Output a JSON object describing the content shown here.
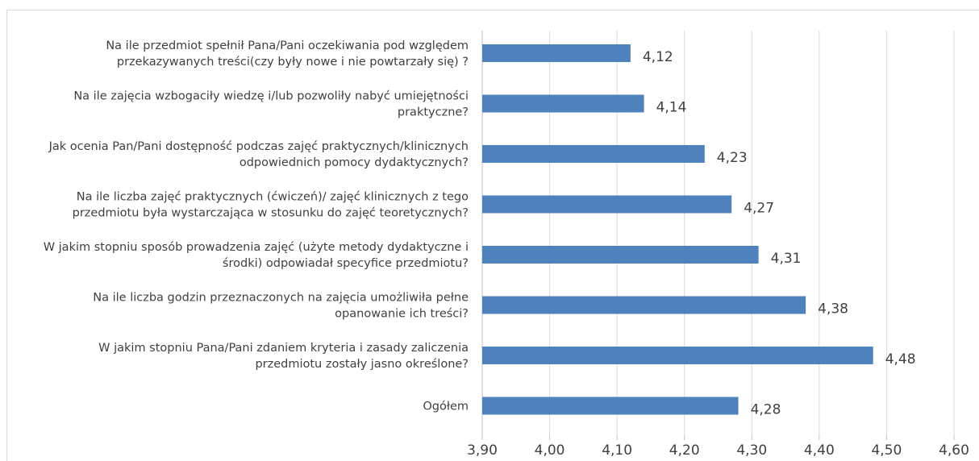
{
  "chart_data": {
    "type": "bar",
    "orientation": "horizontal",
    "categories": [
      [
        "Na ile przedmiot spełnił Pana/Pani oczekiwania pod względem",
        "przekazywanych treści(czy były nowe i nie powtarzały się) ?"
      ],
      [
        "Na ile zajęcia wzbogaciły wiedzę i/lub pozwoliły nabyć umiejętności",
        "praktyczne?"
      ],
      [
        "Jak ocenia Pan/Pani dostępność podczas zajęć praktycznych/klinicznych",
        "odpowiednich pomocy dydaktycznych?"
      ],
      [
        "Na ile liczba zajęć praktycznych (ćwiczeń)/ zajęć klinicznych z tego",
        "przedmiotu była wystarczająca w stosunku do zajęć teoretycznych?"
      ],
      [
        "W jakim stopniu sposób prowadzenia zajęć (użyte metody dydaktyczne i",
        "środki) odpowiadał specyfice przedmiotu?"
      ],
      [
        "Na ile liczba godzin przeznaczonych na zajęcia umożliwiła pełne",
        "opanowanie ich treści?"
      ],
      [
        "W jakim stopniu Pana/Pani zdaniem kryteria i zasady zaliczenia",
        "przedmiotu zostały jasno określone?"
      ],
      [
        "Ogółem"
      ]
    ],
    "values": [
      4.12,
      4.14,
      4.23,
      4.27,
      4.31,
      4.38,
      4.48,
      4.28
    ],
    "value_labels": [
      "4,12",
      "4,14",
      "4,23",
      "4,27",
      "4,31",
      "4,38",
      "4,48",
      "4,28"
    ],
    "xlim": [
      3.9,
      4.6
    ],
    "ticks": [
      3.9,
      4.0,
      4.1,
      4.2,
      4.3,
      4.4,
      4.5,
      4.6
    ],
    "tick_labels": [
      "3,90",
      "4,00",
      "4,10",
      "4,20",
      "4,30",
      "4,40",
      "4,50",
      "4,60"
    ],
    "grid": true,
    "bar_color": "#4f81bd",
    "title": "",
    "xlabel": "",
    "ylabel": ""
  }
}
